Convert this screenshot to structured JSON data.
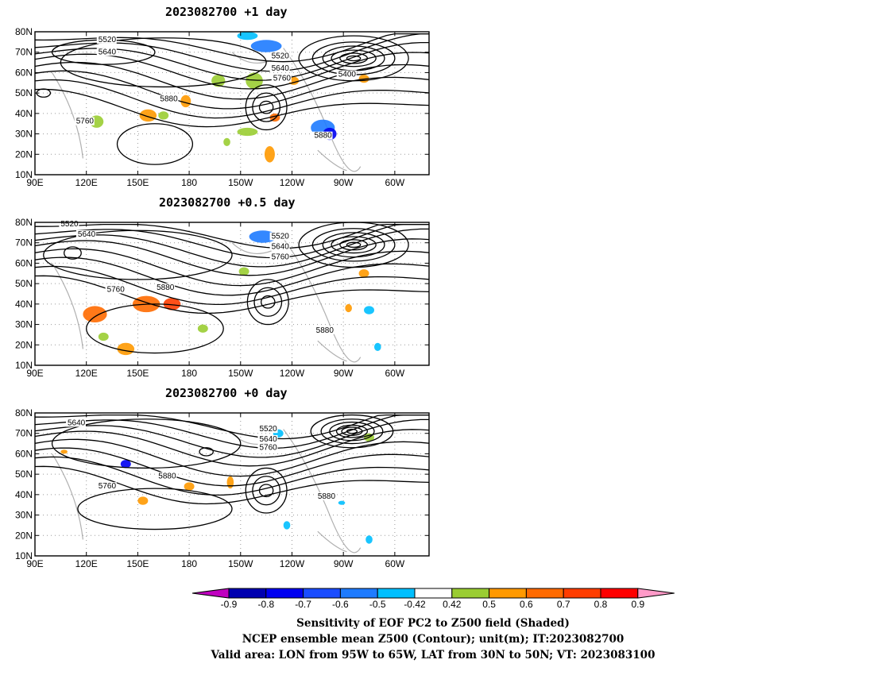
{
  "panels": [
    {
      "title": "2023082700  +1 day",
      "contour_labels": [
        {
          "text": "5520",
          "lon": 127,
          "lat": 75
        },
        {
          "text": "5640",
          "lon": 127,
          "lat": 69
        },
        {
          "text": "5520",
          "lon": 228,
          "lat": 67
        },
        {
          "text": "5640",
          "lon": 228,
          "lat": 61
        },
        {
          "text": "5760",
          "lon": 229,
          "lat": 56
        },
        {
          "text": "5400",
          "lon": 267,
          "lat": 58
        },
        {
          "text": "5880",
          "lon": 163,
          "lat": 46
        },
        {
          "text": "5760",
          "lon": 114,
          "lat": 35
        },
        {
          "text": "5880",
          "lon": 253,
          "lat": 28
        }
      ]
    },
    {
      "title": "2023082700  +0.5 day",
      "contour_labels": [
        {
          "text": "5520",
          "lon": 105,
          "lat": 78
        },
        {
          "text": "5640",
          "lon": 115,
          "lat": 73
        },
        {
          "text": "5520",
          "lon": 228,
          "lat": 72
        },
        {
          "text": "5640",
          "lon": 228,
          "lat": 67
        },
        {
          "text": "5760",
          "lon": 228,
          "lat": 62
        },
        {
          "text": "5760",
          "lon": 132,
          "lat": 46
        },
        {
          "text": "5880",
          "lon": 161,
          "lat": 47
        },
        {
          "text": "5880",
          "lon": 254,
          "lat": 26
        }
      ]
    },
    {
      "title": "2023082700  +0 day",
      "contour_labels": [
        {
          "text": "5640",
          "lon": 109,
          "lat": 74
        },
        {
          "text": "5520",
          "lon": 221,
          "lat": 71
        },
        {
          "text": "5640",
          "lon": 221,
          "lat": 66
        },
        {
          "text": "5760",
          "lon": 221,
          "lat": 62
        },
        {
          "text": "5880",
          "lon": 162,
          "lat": 48
        },
        {
          "text": "5760",
          "lon": 127,
          "lat": 43
        },
        {
          "text": "5880",
          "lon": 255,
          "lat": 38
        }
      ]
    }
  ],
  "axes": {
    "lat_ticks": [
      "80N",
      "70N",
      "60N",
      "50N",
      "40N",
      "30N",
      "20N",
      "10N"
    ],
    "lon_ticks": [
      "90E",
      "120E",
      "150E",
      "180",
      "150W",
      "120W",
      "90W",
      "60W"
    ],
    "lon_range": [
      90,
      320
    ],
    "lat_range": [
      10,
      80
    ]
  },
  "colorbar": {
    "labels": [
      "-0.9",
      "-0.8",
      "-0.7",
      "-0.6",
      "-0.5",
      "-0.42",
      "0.42",
      "0.5",
      "0.6",
      "0.7",
      "0.8",
      "0.9"
    ],
    "colors": [
      "#c000c0",
      "#0000b0",
      "#0000f0",
      "#1a4cff",
      "#1e7bff",
      "#00bfff",
      "#ffffff",
      "#9acd32",
      "#ff9900",
      "#ff6a00",
      "#ff3d00",
      "#ff0000",
      "#ff9ac8"
    ]
  },
  "captions": {
    "line1": "Sensitivity of EOF PC2 to Z500 field (Shaded)",
    "line2": "NCEP ensemble mean Z500 (Contour); unit(m); IT:2023082700",
    "line3": "Valid area: LON from 95W to 65W, LAT from 30N to 50N; VT: 2023083100"
  }
}
